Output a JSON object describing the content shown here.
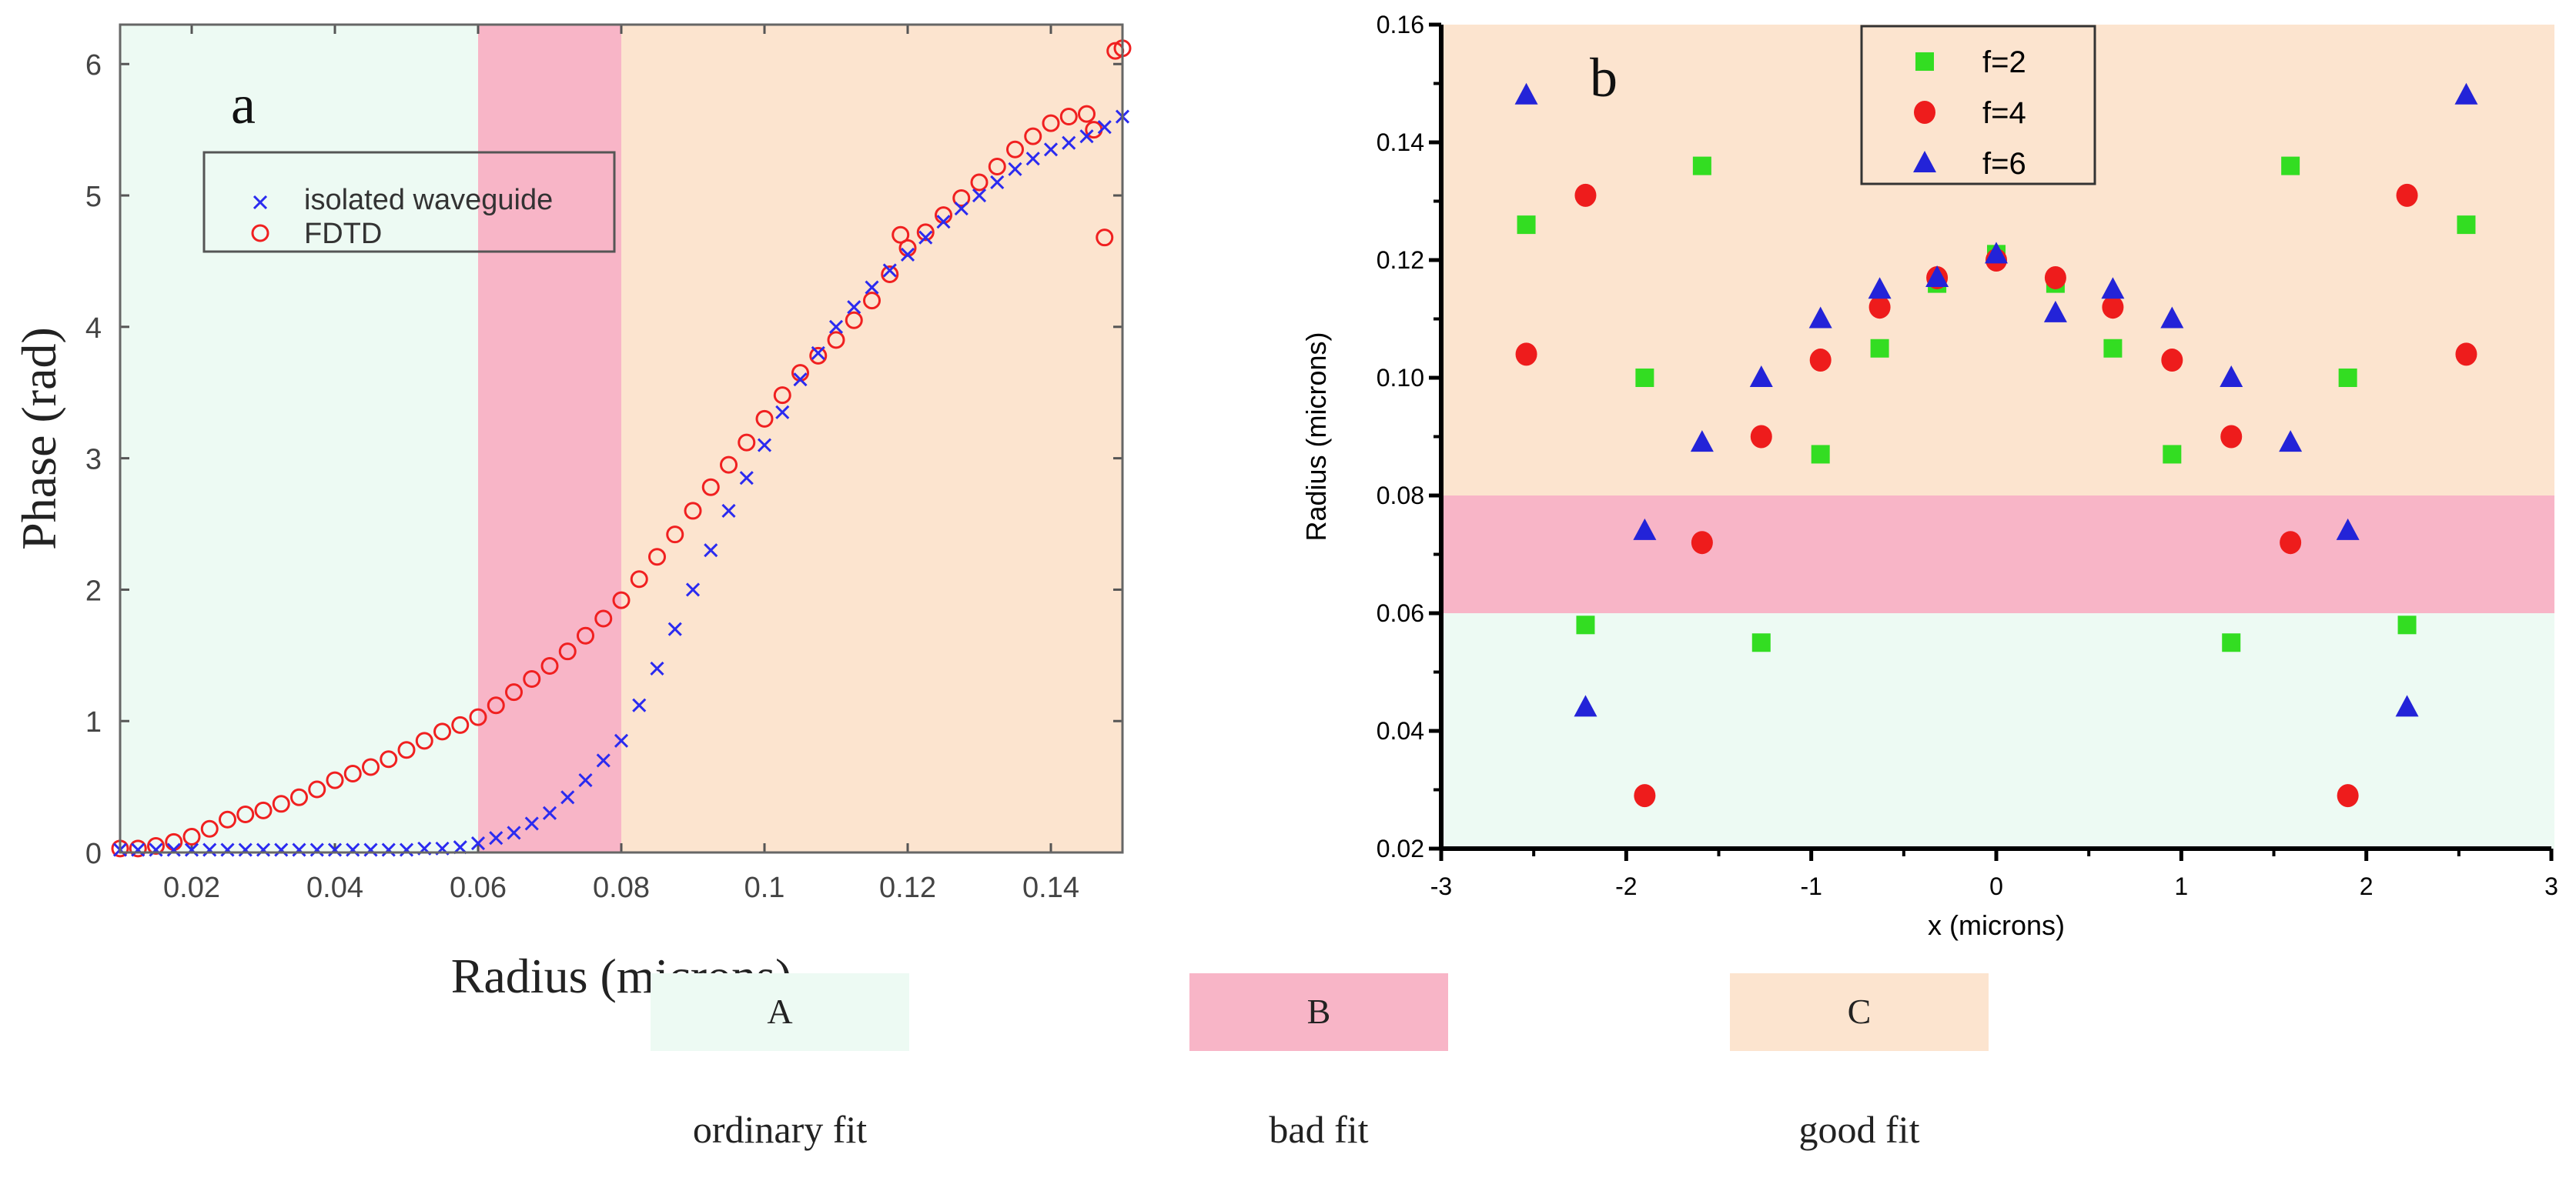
{
  "chart_data": [
    {
      "type": "scatter",
      "panel_label": "a",
      "xlabel": "Radius (microns)",
      "ylabel": "Phase (rad)",
      "xlim": [
        0.01,
        0.15
      ],
      "ylim": [
        0,
        6.3
      ],
      "xticks": [
        "0.02",
        "0.04",
        "0.06",
        "0.08",
        "0.1",
        "0.12",
        "0.14"
      ],
      "yticks": [
        "0",
        "1",
        "2",
        "3",
        "4",
        "5",
        "6"
      ],
      "legend_position": "top-left",
      "regions": [
        {
          "id": "A",
          "from": 0.01,
          "to": 0.06,
          "color": "#edfaf3"
        },
        {
          "id": "B",
          "from": 0.06,
          "to": 0.08,
          "color": "#f8b5c7"
        },
        {
          "id": "C",
          "from": 0.08,
          "to": 0.15,
          "color": "#fce4cf"
        }
      ],
      "series": [
        {
          "name": "isolated waveguide",
          "marker": "x",
          "color": "#2b2bf0",
          "points": [
            [
              0.01,
              0.02
            ],
            [
              0.0125,
              0.02
            ],
            [
              0.015,
              0.02
            ],
            [
              0.0175,
              0.02
            ],
            [
              0.02,
              0.02
            ],
            [
              0.0225,
              0.02
            ],
            [
              0.025,
              0.02
            ],
            [
              0.0275,
              0.02
            ],
            [
              0.03,
              0.02
            ],
            [
              0.0325,
              0.02
            ],
            [
              0.035,
              0.02
            ],
            [
              0.0375,
              0.02
            ],
            [
              0.04,
              0.02
            ],
            [
              0.0425,
              0.02
            ],
            [
              0.045,
              0.02
            ],
            [
              0.0475,
              0.02
            ],
            [
              0.05,
              0.02
            ],
            [
              0.0525,
              0.03
            ],
            [
              0.055,
              0.03
            ],
            [
              0.0575,
              0.04
            ],
            [
              0.06,
              0.07
            ],
            [
              0.0625,
              0.11
            ],
            [
              0.065,
              0.15
            ],
            [
              0.0675,
              0.22
            ],
            [
              0.07,
              0.3
            ],
            [
              0.0725,
              0.42
            ],
            [
              0.075,
              0.55
            ],
            [
              0.0775,
              0.7
            ],
            [
              0.08,
              0.85
            ],
            [
              0.0825,
              1.12
            ],
            [
              0.085,
              1.4
            ],
            [
              0.0875,
              1.7
            ],
            [
              0.09,
              2.0
            ],
            [
              0.0925,
              2.3
            ],
            [
              0.095,
              2.6
            ],
            [
              0.0975,
              2.85
            ],
            [
              0.1,
              3.1
            ],
            [
              0.1025,
              3.35
            ],
            [
              0.105,
              3.6
            ],
            [
              0.1075,
              3.8
            ],
            [
              0.11,
              4.0
            ],
            [
              0.1125,
              4.15
            ],
            [
              0.115,
              4.3
            ],
            [
              0.1175,
              4.43
            ],
            [
              0.12,
              4.55
            ],
            [
              0.1225,
              4.68
            ],
            [
              0.125,
              4.8
            ],
            [
              0.1275,
              4.9
            ],
            [
              0.13,
              5.0
            ],
            [
              0.1325,
              5.1
            ],
            [
              0.135,
              5.2
            ],
            [
              0.1375,
              5.28
            ],
            [
              0.14,
              5.35
            ],
            [
              0.1425,
              5.4
            ],
            [
              0.145,
              5.45
            ],
            [
              0.1475,
              5.52
            ],
            [
              0.15,
              5.6
            ]
          ]
        },
        {
          "name": "FDTD",
          "marker": "o",
          "color": "#f02020",
          "points": [
            [
              0.01,
              0.03
            ],
            [
              0.0125,
              0.03
            ],
            [
              0.015,
              0.05
            ],
            [
              0.0175,
              0.08
            ],
            [
              0.02,
              0.12
            ],
            [
              0.0225,
              0.18
            ],
            [
              0.025,
              0.25
            ],
            [
              0.0275,
              0.29
            ],
            [
              0.03,
              0.32
            ],
            [
              0.0325,
              0.37
            ],
            [
              0.035,
              0.42
            ],
            [
              0.0375,
              0.48
            ],
            [
              0.04,
              0.55
            ],
            [
              0.0425,
              0.6
            ],
            [
              0.045,
              0.65
            ],
            [
              0.0475,
              0.71
            ],
            [
              0.05,
              0.78
            ],
            [
              0.0525,
              0.85
            ],
            [
              0.055,
              0.92
            ],
            [
              0.0575,
              0.97
            ],
            [
              0.06,
              1.03
            ],
            [
              0.0625,
              1.12
            ],
            [
              0.065,
              1.22
            ],
            [
              0.0675,
              1.32
            ],
            [
              0.07,
              1.42
            ],
            [
              0.0725,
              1.53
            ],
            [
              0.075,
              1.65
            ],
            [
              0.0775,
              1.78
            ],
            [
              0.08,
              1.92
            ],
            [
              0.0825,
              2.08
            ],
            [
              0.085,
              2.25
            ],
            [
              0.0875,
              2.42
            ],
            [
              0.09,
              2.6
            ],
            [
              0.0925,
              2.78
            ],
            [
              0.095,
              2.95
            ],
            [
              0.0975,
              3.12
            ],
            [
              0.1,
              3.3
            ],
            [
              0.1025,
              3.48
            ],
            [
              0.105,
              3.65
            ],
            [
              0.1075,
              3.78
            ],
            [
              0.11,
              3.9
            ],
            [
              0.1125,
              4.05
            ],
            [
              0.115,
              4.2
            ],
            [
              0.1175,
              4.4
            ],
            [
              0.119,
              4.7
            ],
            [
              0.12,
              4.6
            ],
            [
              0.1225,
              4.72
            ],
            [
              0.125,
              4.85
            ],
            [
              0.1275,
              4.98
            ],
            [
              0.13,
              5.1
            ],
            [
              0.1325,
              5.22
            ],
            [
              0.135,
              5.35
            ],
            [
              0.1375,
              5.45
            ],
            [
              0.14,
              5.55
            ],
            [
              0.1425,
              5.6
            ],
            [
              0.145,
              5.62
            ],
            [
              0.146,
              5.5
            ],
            [
              0.1475,
              4.68
            ],
            [
              0.149,
              6.1
            ],
            [
              0.15,
              6.12
            ]
          ]
        }
      ]
    },
    {
      "type": "scatter",
      "panel_label": "b",
      "xlabel": "x (microns)",
      "ylabel": "Radius (microns)",
      "xlim": [
        -3,
        3
      ],
      "ylim": [
        0.02,
        0.16
      ],
      "xticks": [
        "-3",
        "-2",
        "-1",
        "0",
        "1",
        "2",
        "3"
      ],
      "yticks": [
        "0.02",
        "0.04",
        "0.06",
        "0.08",
        "0.10",
        "0.12",
        "0.14",
        "0.16"
      ],
      "legend_position": "top-center",
      "regions": [
        {
          "id": "A",
          "from": 0.02,
          "to": 0.06,
          "color": "#edfaf3"
        },
        {
          "id": "B",
          "from": 0.06,
          "to": 0.08,
          "color": "#f8b5c7"
        },
        {
          "id": "C",
          "from": 0.08,
          "to": 0.16,
          "color": "#fce4cf"
        }
      ],
      "x": [
        -2.54,
        -2.22,
        -1.9,
        -1.59,
        -1.27,
        -0.95,
        -0.63,
        -0.32,
        0,
        0.32,
        0.63,
        0.95,
        1.27,
        1.59,
        1.9,
        2.22,
        2.54
      ],
      "series": [
        {
          "name": "f=2",
          "marker": "square",
          "color": "#33dd22",
          "values": [
            0.126,
            0.058,
            0.1,
            0.136,
            0.055,
            0.087,
            0.105,
            0.116,
            0.121,
            0.116,
            0.105,
            0.087,
            0.055,
            0.136,
            0.1,
            0.058,
            0.126
          ]
        },
        {
          "name": "f=4",
          "marker": "circle",
          "color": "#ee1c1c",
          "values": [
            0.104,
            0.131,
            0.029,
            0.072,
            0.09,
            0.103,
            0.112,
            0.117,
            0.12,
            0.117,
            0.112,
            0.103,
            0.09,
            0.072,
            0.029,
            0.131,
            0.104
          ]
        },
        {
          "name": "f=6",
          "marker": "triangle",
          "color": "#2323d8",
          "values": [
            0.148,
            0.044,
            0.074,
            0.089,
            0.1,
            0.11,
            0.115,
            0.117,
            0.121,
            0.111,
            0.115,
            0.11,
            0.1,
            0.089,
            0.074,
            0.044,
            0.148
          ]
        }
      ]
    }
  ],
  "region_legend": [
    {
      "id": "A",
      "description": "ordinary fit",
      "color": "#edfaf3"
    },
    {
      "id": "B",
      "description": "bad fit",
      "color": "#f8b5c7"
    },
    {
      "id": "C",
      "description": "good fit",
      "color": "#fce4cf"
    }
  ]
}
